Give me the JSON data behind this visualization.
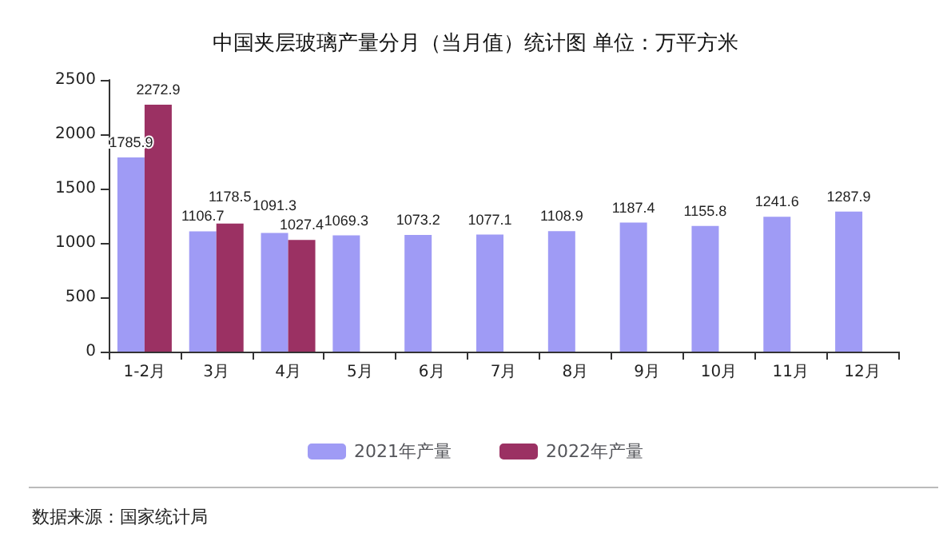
{
  "chart_data": {
    "type": "bar",
    "title": "中国夹层玻璃产量分月（当月值）统计图 单位：万平方米",
    "categories": [
      "1-2月",
      "3月",
      "4月",
      "5月",
      "6月",
      "7月",
      "8月",
      "9月",
      "10月",
      "11月",
      "12月"
    ],
    "series": [
      {
        "name": "2021年产量",
        "color": "#9f9bf5",
        "values": [
          1785.9,
          1106.7,
          1091.3,
          1069.3,
          1073.2,
          1077.1,
          1108.9,
          1187.4,
          1155.8,
          1241.6,
          1287.9
        ]
      },
      {
        "name": "2022年产量",
        "color": "#9b3163",
        "values": [
          2272.9,
          1178.5,
          1027.4,
          null,
          null,
          null,
          null,
          null,
          null,
          null,
          null
        ]
      }
    ],
    "ylim": [
      0,
      2500
    ],
    "yticks": [
      0,
      500,
      1000,
      1500,
      2000,
      2500
    ],
    "grid": false,
    "legend": "bottom",
    "data_labels": true,
    "annotations": [
      "数据来源：国家统计局"
    ]
  }
}
